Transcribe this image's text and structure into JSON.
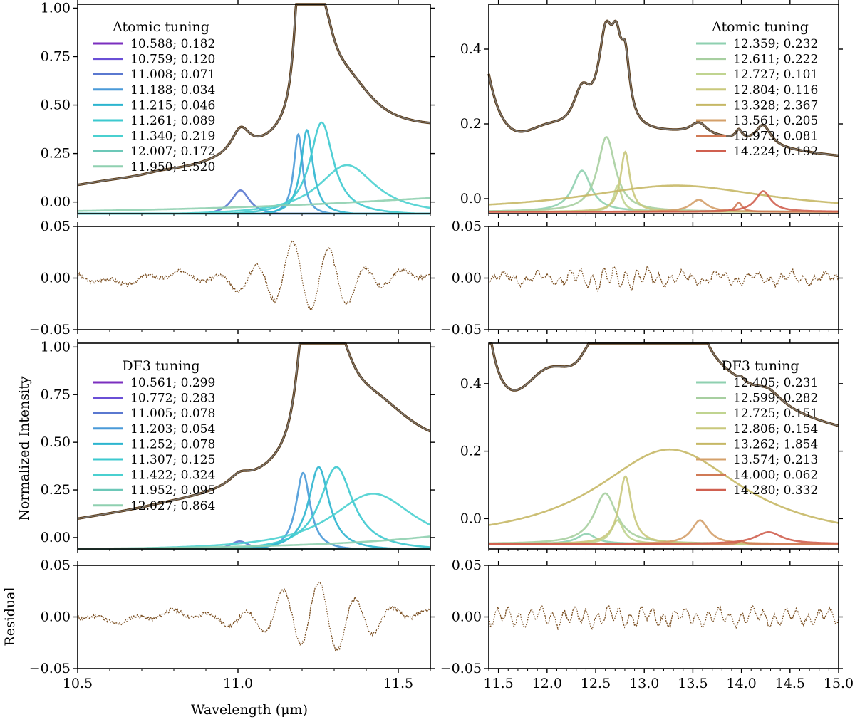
{
  "figure": {
    "xlabel": "Wavelength (μm)",
    "ylabel_top": "Normalized Intensity",
    "ylabel_bottom": "Residual"
  },
  "colors": {
    "data": "#5a3a16",
    "model": "#808080",
    "residual": "#7a4e20",
    "lines": [
      "#7b2fbf",
      "#6a4fd6",
      "#5a78d0",
      "#4a9ad8",
      "#2cb5cf",
      "#3cc9cf",
      "#4ad0d0",
      "#6cc8b8",
      "#8fd0b0",
      "#a7cfa0",
      "#c0d490",
      "#c9c87c",
      "#c6b866",
      "#d4a06a",
      "#d07a56",
      "#d06050",
      "#d02f32"
    ]
  },
  "chart_data": [
    {
      "id": "top-left",
      "type": "line",
      "legend_title": "Atomic tuning",
      "legend_position": "top-left",
      "xlim": [
        10.5,
        11.6
      ],
      "ylim": [
        -0.06,
        1.02
      ],
      "yticks": [
        "0.00",
        "0.25",
        "0.50",
        "0.75",
        "1.00"
      ],
      "ytick_values": [
        0,
        0.25,
        0.5,
        0.75,
        1.0
      ],
      "baseline": -0.07,
      "lorentzian_heights": [
        0.006,
        0.01,
        0.13,
        0.42,
        0.44,
        0.48,
        0.26,
        0.004,
        0.11
      ],
      "entries": [
        {
          "label": "10.588; 0.182",
          "center": 10.588,
          "fwhm": 0.182
        },
        {
          "label": "10.759; 0.120",
          "center": 10.759,
          "fwhm": 0.12
        },
        {
          "label": "11.008; 0.071",
          "center": 11.008,
          "fwhm": 0.071
        },
        {
          "label": "11.188; 0.034",
          "center": 11.188,
          "fwhm": 0.034
        },
        {
          "label": "11.215; 0.046",
          "center": 11.215,
          "fwhm": 0.046
        },
        {
          "label": "11.261; 0.089",
          "center": 11.261,
          "fwhm": 0.089
        },
        {
          "label": "11.340; 0.219",
          "center": 11.34,
          "fwhm": 0.219
        },
        {
          "label": "12.007; 0.172",
          "center": 12.007,
          "fwhm": 0.172
        },
        {
          "label": "11.950; 1.520",
          "center": 11.95,
          "fwhm": 1.52
        }
      ]
    },
    {
      "id": "top-right",
      "type": "line",
      "legend_title": "Atomic tuning",
      "legend_position": "top-right",
      "xlim": [
        11.4,
        15.0
      ],
      "ylim": [
        -0.04,
        0.52
      ],
      "yticks": [
        "0.0",
        "0.2",
        "0.4"
      ],
      "ytick_values": [
        0,
        0.2,
        0.4
      ],
      "baseline": -0.035,
      "lorentzian_heights": [
        0.11,
        0.2,
        0.07,
        0.16,
        0.07,
        0.032,
        0.025,
        0.055
      ],
      "entries": [
        {
          "label": "12.359; 0.232",
          "center": 12.359,
          "fwhm": 0.232
        },
        {
          "label": "12.611; 0.222",
          "center": 12.611,
          "fwhm": 0.222
        },
        {
          "label": "12.727; 0.101",
          "center": 12.727,
          "fwhm": 0.101
        },
        {
          "label": "12.804; 0.116",
          "center": 12.804,
          "fwhm": 0.116
        },
        {
          "label": "13.328; 2.367",
          "center": 13.328,
          "fwhm": 2.367
        },
        {
          "label": "13.561; 0.205",
          "center": 13.561,
          "fwhm": 0.205
        },
        {
          "label": "13.973; 0.081",
          "center": 13.973,
          "fwhm": 0.081
        },
        {
          "label": "14.224; 0.192",
          "center": 14.224,
          "fwhm": 0.192
        }
      ]
    },
    {
      "id": "bottom-left",
      "type": "line",
      "legend_title": "DF3 tuning",
      "legend_position": "top-left",
      "xlim": [
        10.5,
        11.6
      ],
      "ylim": [
        -0.06,
        1.02
      ],
      "yticks": [
        "0.00",
        "0.25",
        "0.50",
        "0.75",
        "1.00"
      ],
      "ytick_values": [
        0,
        0.25,
        0.5,
        0.75,
        1.0
      ],
      "baseline": -0.07,
      "lorentzian_heights": [
        0.006,
        0.01,
        0.05,
        0.41,
        0.44,
        0.44,
        0.3,
        0.004,
        0.15
      ],
      "entries": [
        {
          "label": "10.561; 0.299",
          "center": 10.561,
          "fwhm": 0.299
        },
        {
          "label": "10.772; 0.283",
          "center": 10.772,
          "fwhm": 0.283
        },
        {
          "label": "11.005; 0.078",
          "center": 11.005,
          "fwhm": 0.078
        },
        {
          "label": "11.203; 0.054",
          "center": 11.203,
          "fwhm": 0.054
        },
        {
          "label": "11.252; 0.078",
          "center": 11.252,
          "fwhm": 0.078
        },
        {
          "label": "11.307; 0.125",
          "center": 11.307,
          "fwhm": 0.125
        },
        {
          "label": "11.422; 0.324",
          "center": 11.422,
          "fwhm": 0.324
        },
        {
          "label": "11.952; 0.095",
          "center": 11.952,
          "fwhm": 0.095
        },
        {
          "label": "12.027; 0.864",
          "center": 12.027,
          "fwhm": 0.864
        }
      ]
    },
    {
      "id": "bottom-right",
      "type": "line",
      "legend_title": "DF3 tuning",
      "legend_position": "top-right",
      "xlim": [
        11.4,
        15.0
      ],
      "ylim": [
        -0.09,
        0.52
      ],
      "yticks": [
        "0.0",
        "0.2",
        "0.4"
      ],
      "ytick_values": [
        0,
        0.2,
        0.4
      ],
      "baseline": -0.075,
      "lorentzian_heights": [
        0.03,
        0.15,
        0.07,
        0.2,
        0.28,
        0.07,
        0.01,
        0.035
      ],
      "entries": [
        {
          "label": "12.405; 0.231",
          "center": 12.405,
          "fwhm": 0.231
        },
        {
          "label": "12.599; 0.282",
          "center": 12.599,
          "fwhm": 0.282
        },
        {
          "label": "12.725; 0.151",
          "center": 12.725,
          "fwhm": 0.151
        },
        {
          "label": "12.806; 0.154",
          "center": 12.806,
          "fwhm": 0.154
        },
        {
          "label": "13.262; 1.854",
          "center": 13.262,
          "fwhm": 1.854
        },
        {
          "label": "13.574; 0.213",
          "center": 13.574,
          "fwhm": 0.213
        },
        {
          "label": "14.000; 0.062",
          "center": 14.0,
          "fwhm": 0.062
        },
        {
          "label": "14.280; 0.332",
          "center": 14.28,
          "fwhm": 0.332
        }
      ]
    }
  ],
  "residuals": {
    "ylim": [
      -0.05,
      0.05
    ],
    "yticks": [
      "0.05",
      "0.00",
      "−0.05"
    ],
    "ytick_values": [
      0.05,
      0.0,
      -0.05
    ]
  },
  "xticks_left": [
    "10.5",
    "11.0",
    "11.5"
  ],
  "xtick_values_left": [
    10.5,
    11.0,
    11.5
  ],
  "xticks_right": [
    "11.5",
    "12.0",
    "12.5",
    "13.0",
    "13.5",
    "14.0",
    "14.5",
    "15.0"
  ],
  "xtick_values_right": [
    11.5,
    12.0,
    12.5,
    13.0,
    13.5,
    14.0,
    14.5,
    15.0
  ]
}
